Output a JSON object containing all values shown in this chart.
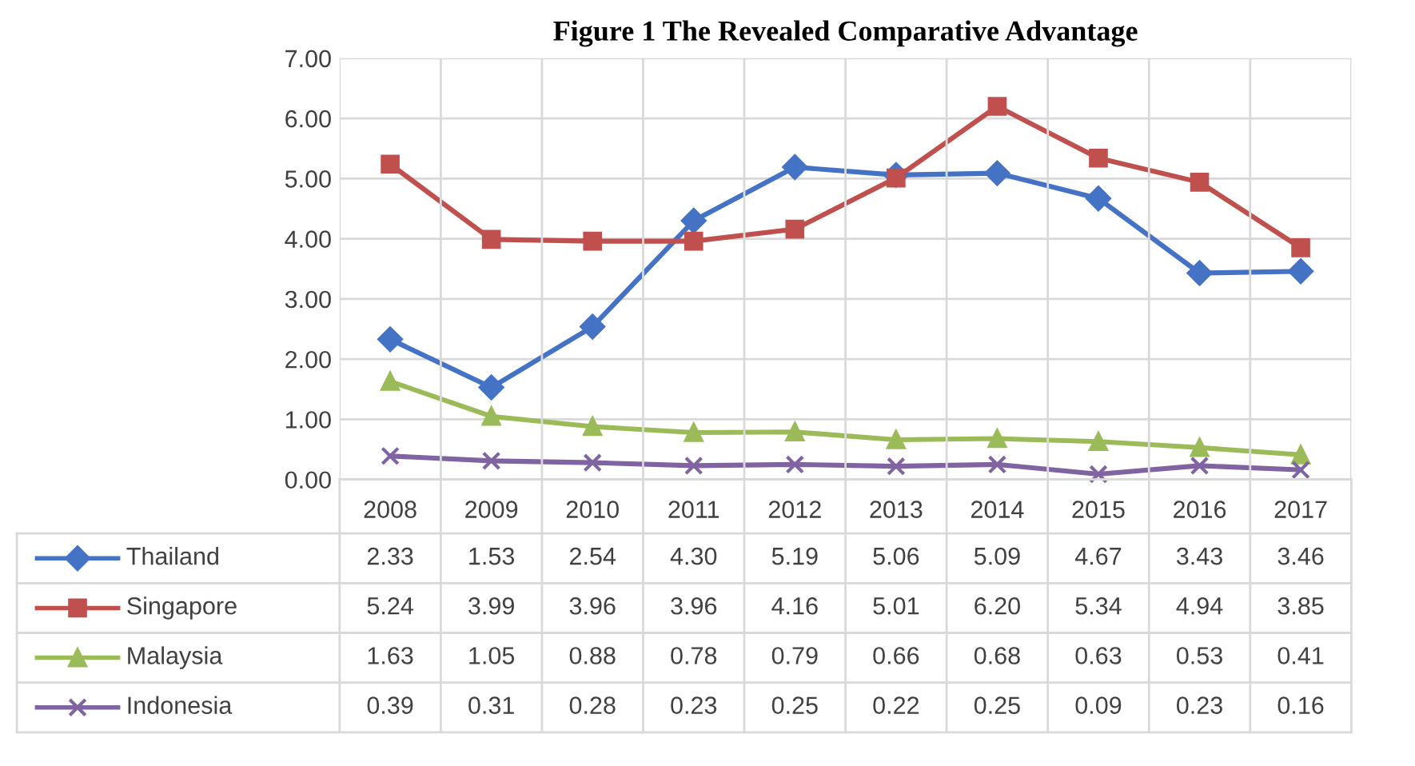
{
  "chart_data": {
    "type": "line",
    "title": "Figure 1 The Revealed Comparative Advantage",
    "categories": [
      "2008",
      "2009",
      "2010",
      "2011",
      "2012",
      "2013",
      "2014",
      "2015",
      "2016",
      "2017"
    ],
    "series": [
      {
        "name": "Thailand",
        "color": "#4472c4",
        "marker": "diamond",
        "values": [
          2.33,
          1.53,
          2.54,
          4.3,
          5.19,
          5.06,
          5.09,
          4.67,
          3.43,
          3.46
        ],
        "value_labels": [
          "2.33",
          "1.53",
          "2.54",
          "4.30",
          "5.19",
          "5.06",
          "5.09",
          "4.67",
          "3.43",
          "3.46"
        ]
      },
      {
        "name": "Singapore",
        "color": "#c0504d",
        "marker": "square",
        "values": [
          5.24,
          3.99,
          3.96,
          3.96,
          4.16,
          5.01,
          6.2,
          5.34,
          4.94,
          3.85
        ],
        "value_labels": [
          "5.24",
          "3.99",
          "3.96",
          "3.96",
          "4.16",
          "5.01",
          "6.20",
          "5.34",
          "4.94",
          "3.85"
        ]
      },
      {
        "name": "Malaysia",
        "color": "#9bbb59",
        "marker": "triangle",
        "values": [
          1.63,
          1.05,
          0.88,
          0.78,
          0.79,
          0.66,
          0.68,
          0.63,
          0.53,
          0.41
        ],
        "value_labels": [
          "1.63",
          "1.05",
          "0.88",
          "0.78",
          "0.79",
          "0.66",
          "0.68",
          "0.63",
          "0.53",
          "0.41"
        ]
      },
      {
        "name": "Indonesia",
        "color": "#8064a2",
        "marker": "cross",
        "values": [
          0.39,
          0.31,
          0.28,
          0.23,
          0.25,
          0.22,
          0.25,
          0.09,
          0.23,
          0.16
        ],
        "value_labels": [
          "0.39",
          "0.31",
          "0.28",
          "0.23",
          "0.25",
          "0.22",
          "0.25",
          "0.09",
          "0.23",
          "0.16"
        ]
      }
    ],
    "ylim": [
      0,
      7
    ],
    "yticks": [
      {
        "value": 0,
        "label": "0.00"
      },
      {
        "value": 1,
        "label": "1.00"
      },
      {
        "value": 2,
        "label": "2.00"
      },
      {
        "value": 3,
        "label": "3.00"
      },
      {
        "value": 4,
        "label": "4.00"
      },
      {
        "value": 5,
        "label": "5.00"
      },
      {
        "value": 6,
        "label": "6.00"
      },
      {
        "value": 7,
        "label": "7.00"
      }
    ],
    "grid": true,
    "line_style": "solid",
    "legend": "bottom left"
  }
}
